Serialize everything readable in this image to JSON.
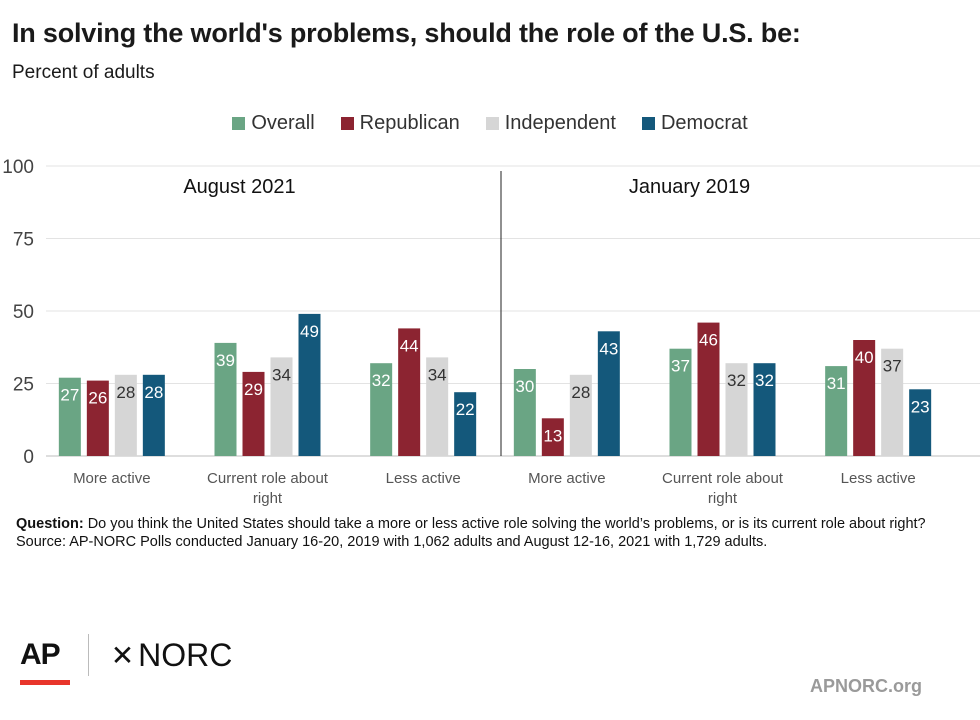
{
  "title": "In solving the world's problems, should the role of the U.S. be:",
  "subtitle": "Percent of adults",
  "colors": {
    "Overall": "#6aa584",
    "Republican": "#8c2431",
    "Independent": "#d6d6d6",
    "Democrat": "#14587b"
  },
  "chart_data": {
    "type": "bar",
    "ylim": [
      0,
      100
    ],
    "yticks": [
      0,
      25,
      50,
      75,
      100
    ],
    "grid": true,
    "legend_position": "top",
    "series_names": [
      "Overall",
      "Republican",
      "Independent",
      "Democrat"
    ],
    "panels": [
      {
        "label": "August 2021",
        "groups": [
          {
            "category": "More active",
            "values": [
              27,
              26,
              28,
              28
            ]
          },
          {
            "category": "Current role about right",
            "values": [
              39,
              29,
              34,
              49
            ]
          },
          {
            "category": "Less active",
            "values": [
              32,
              44,
              34,
              22
            ]
          }
        ]
      },
      {
        "label": "January 2019",
        "groups": [
          {
            "category": "More active",
            "values": [
              30,
              13,
              28,
              43
            ]
          },
          {
            "category": "Current role about right",
            "values": [
              37,
              46,
              32,
              32
            ]
          },
          {
            "category": "Less active",
            "values": [
              31,
              40,
              37,
              23
            ]
          }
        ]
      }
    ]
  },
  "footer": {
    "question_label": "Question:",
    "question_text": " Do you think the United States should take a more or less active role solving the world’s problems, or is its current role about right?",
    "source": "Source: AP-NORC Polls conducted January 16-20, 2019 with 1,062 adults and August 12-16, 2021 with 1,729 adults."
  },
  "logos": {
    "ap": "AP",
    "norc": "NORC",
    "norc_mark": "✕"
  },
  "site": "APNORC.org"
}
